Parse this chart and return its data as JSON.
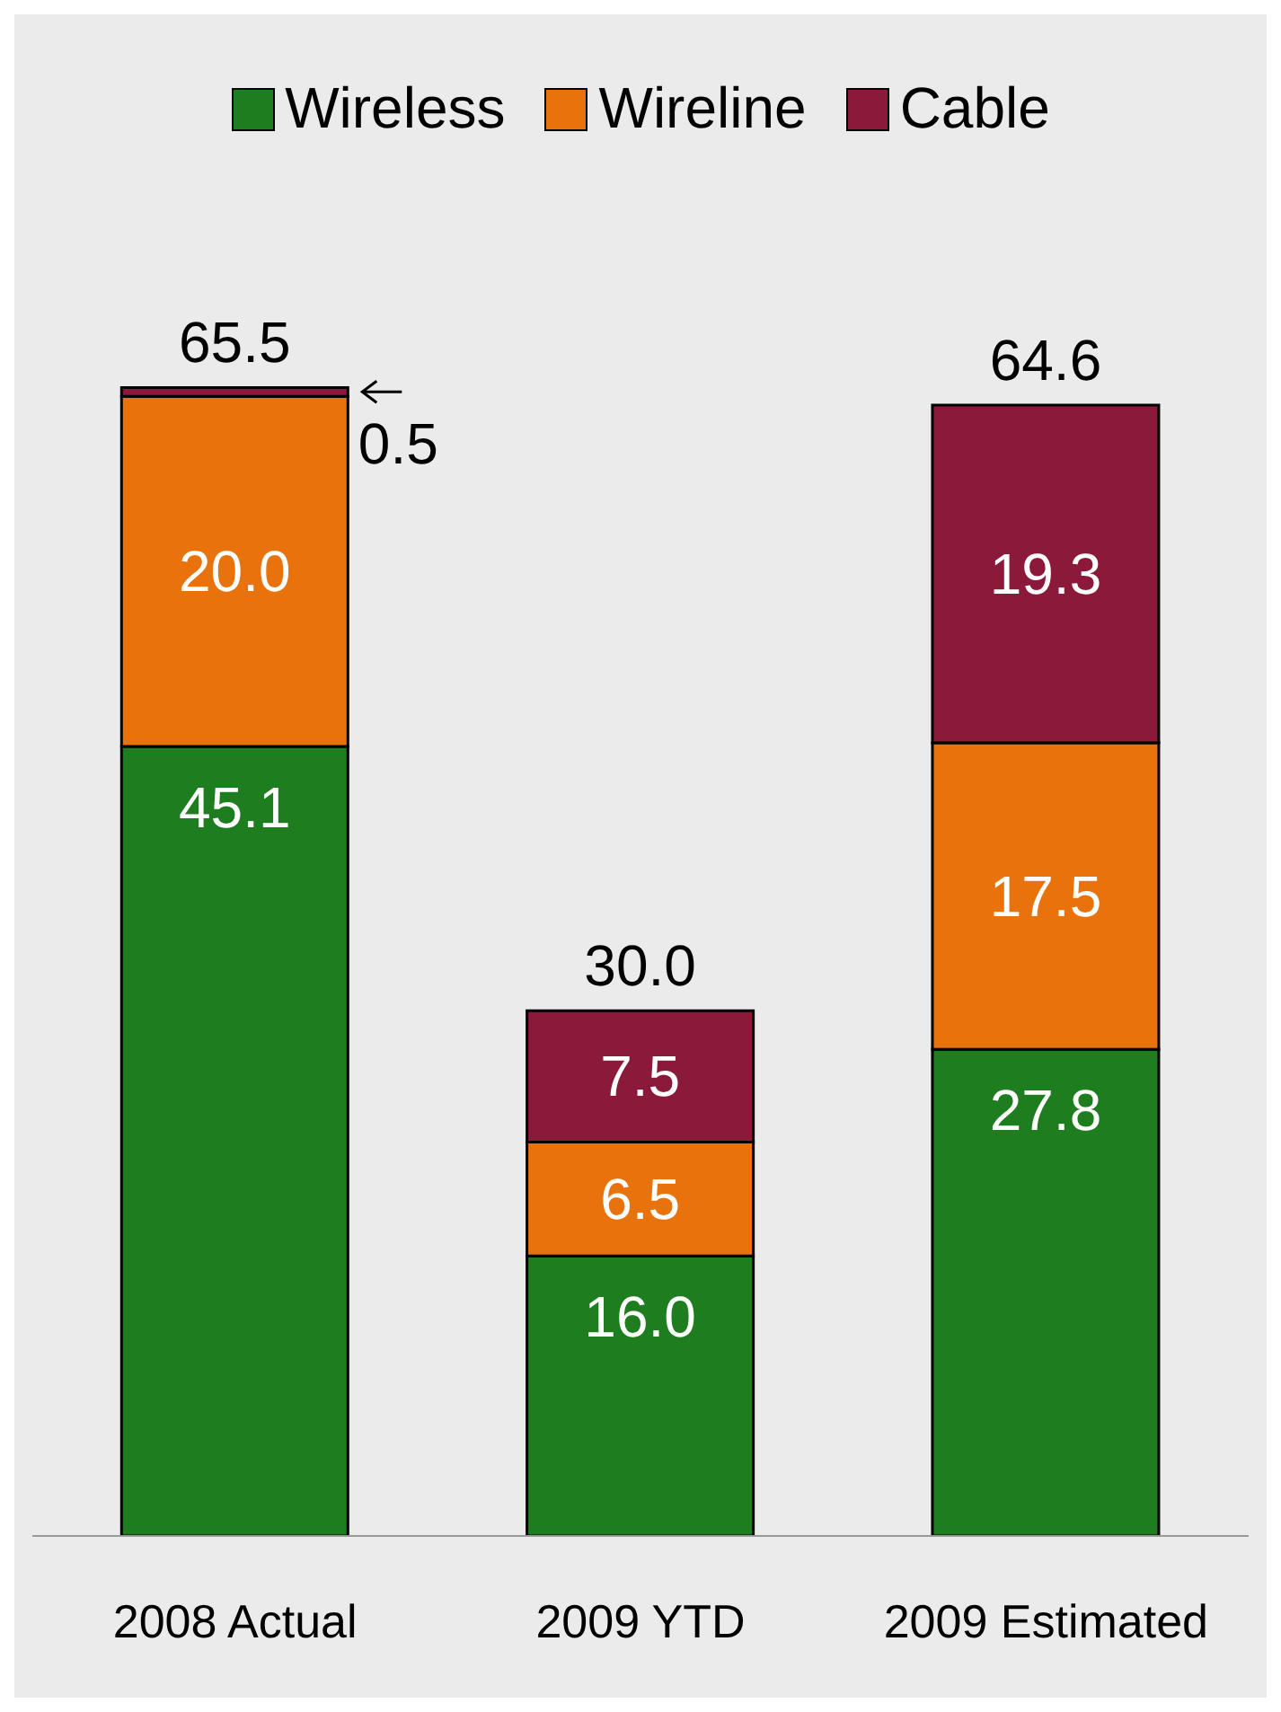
{
  "chart_data": {
    "type": "bar",
    "stacked": true,
    "categories": [
      "2008 Actual",
      "2009 YTD",
      "2009 Estimated"
    ],
    "series": [
      {
        "name": "Wireless",
        "color": "#1e7d1e",
        "values": [
          45.1,
          16.0,
          27.8
        ],
        "value_labels": [
          "45.1",
          "16.0",
          "27.8"
        ]
      },
      {
        "name": "Wireline",
        "color": "#e8720c",
        "values": [
          20.0,
          6.5,
          17.5
        ],
        "value_labels": [
          "20.0",
          "6.5",
          "17.5"
        ]
      },
      {
        "name": "Cable",
        "color": "#8b1a3a",
        "values": [
          0.5,
          7.5,
          19.3
        ],
        "value_labels": [
          "0.5",
          "7.5",
          "19.3"
        ]
      }
    ],
    "totals": [
      "65.5",
      "30.0",
      "64.6"
    ],
    "legend": "top"
  }
}
